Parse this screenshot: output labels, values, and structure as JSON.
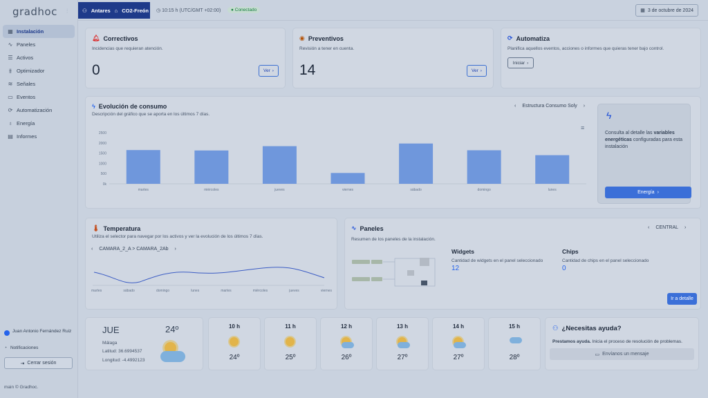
{
  "sidebar": {
    "logo": "gradhoc",
    "items": [
      {
        "label": "Instalación",
        "icon": "grid-icon",
        "active": true
      },
      {
        "label": "Paneles",
        "icon": "activity-icon"
      },
      {
        "label": "Activos",
        "icon": "list-icon"
      },
      {
        "label": "Optimizador",
        "icon": "sliders-icon"
      },
      {
        "label": "Señales",
        "icon": "signal-icon"
      },
      {
        "label": "Eventos",
        "icon": "events-icon"
      },
      {
        "label": "Automatización",
        "icon": "automation-icon"
      },
      {
        "label": "Energía",
        "icon": "bulb-icon"
      },
      {
        "label": "Informes",
        "icon": "file-icon"
      }
    ],
    "user_name": "Juan Antonio Fernández Ruiz",
    "notifications": "Notificaciones",
    "logout": "Cerrar sesión",
    "footer": "main © Gradhoc."
  },
  "topbar": {
    "org": "Antares",
    "site": "CO2-Freón",
    "time": "10:15 h (UTC/GMT +02:00)",
    "status": "Conectado",
    "date": "3 de octubre de 2024"
  },
  "cards": {
    "correctivos": {
      "title": "Correctivos",
      "subtitle": "Incidencias que requieran atención.",
      "count": "0",
      "button": "Ver"
    },
    "preventivos": {
      "title": "Preventivos",
      "subtitle": "Revisión a tener en cuenta.",
      "count": "14",
      "button": "Ver"
    },
    "automatiza": {
      "title": "Automatiza",
      "subtitle": "Planifica aquellos eventos, acciones o informes que quieras tener bajo control.",
      "button": "Iniciar"
    }
  },
  "consumo": {
    "title": "Evolución de consumo",
    "subtitle": "Descripción del gráfico que se aporta en los últimos 7 días.",
    "structure": "Estructura Consumo Soly",
    "info_prefix": "Consulta al detalle las ",
    "info_bold": "variables energéticas",
    "info_suffix": " configuradas para esta instalación",
    "button": "Energía"
  },
  "chart_data": {
    "type": "bar",
    "categories": [
      "martes",
      "miércoles",
      "jueves",
      "viernes",
      "sábado",
      "domingo",
      "lunes"
    ],
    "values": [
      1650,
      1630,
      1840,
      530,
      1970,
      1640,
      1400
    ],
    "y_ticks": [
      "0k",
      "500",
      "1000",
      "1500",
      "2000",
      "2500"
    ],
    "ylim": [
      0,
      2500
    ],
    "bar_color": "#6f97dc"
  },
  "temperatura": {
    "title": "Temperatura",
    "subtitle": "Utiliza el selector para navegar por los activos y ver la evolución de los últimos 7 días.",
    "path": "CAMARA_2_A > CAMARA_2Ab",
    "x_labels": [
      "martes",
      "sábado",
      "domingo",
      "lunes",
      "martes",
      "miércoles",
      "jueves",
      "viernes"
    ]
  },
  "paneles": {
    "title": "Paneles",
    "subtitle": "Resumen de los paneles de la instalación.",
    "selector": "CENTRAL",
    "widgets_title": "Widgets",
    "widgets_sub": "Cantidad de widgets en el panel seleccionado",
    "widgets_count": "12",
    "chips_title": "Chips",
    "chips_sub": "Cantidad de chips en el panel seleccionado",
    "chips_count": "0",
    "button": "Ir a detalle"
  },
  "weather": {
    "day": "JUE",
    "temp": "24º",
    "city": "Málaga",
    "lat": "Latitud: 36.6994537",
    "lon": "Longitud: -4.4992123",
    "hours": [
      {
        "hour": "10 h",
        "temp": "24º",
        "icon": "sun"
      },
      {
        "hour": "11 h",
        "temp": "25º",
        "icon": "sun"
      },
      {
        "hour": "12 h",
        "temp": "26º",
        "icon": "sun-cloud"
      },
      {
        "hour": "13 h",
        "temp": "27º",
        "icon": "sun-cloud"
      },
      {
        "hour": "14 h",
        "temp": "27º",
        "icon": "sun-cloud"
      },
      {
        "hour": "15 h",
        "temp": "28º",
        "icon": "cloud"
      }
    ]
  },
  "ayuda": {
    "title": "¿Necesitas ayuda?",
    "text_bold": "Prestamos ayuda.",
    "text": " Inicia el proceso de resolución de problemas.",
    "button": "Envíanos un mensaje"
  }
}
